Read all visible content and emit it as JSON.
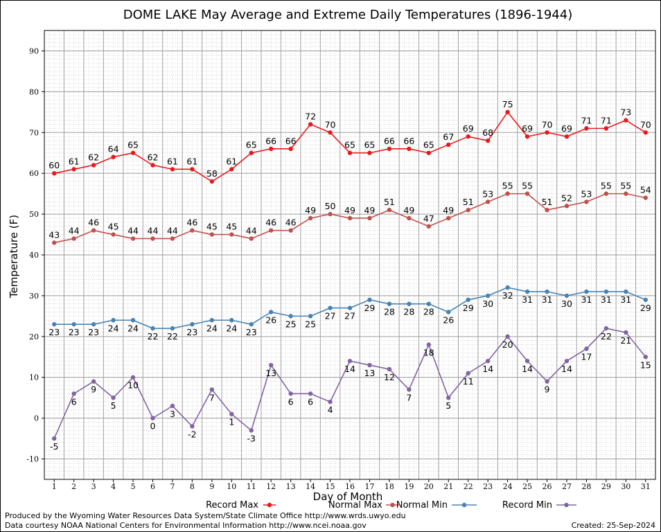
{
  "chart_data": {
    "type": "line",
    "title": "DOME LAKE May Average and Extreme Daily Temperatures (1896-1944)",
    "xlabel": "Day of Month",
    "ylabel": "Temperature (F)",
    "ylim": [
      -15,
      95
    ],
    "xlim": [
      0.5,
      31.5
    ],
    "yticks": [
      -10,
      0,
      10,
      20,
      30,
      40,
      50,
      60,
      70,
      80,
      90
    ],
    "x": [
      1,
      2,
      3,
      4,
      5,
      6,
      7,
      8,
      9,
      10,
      11,
      12,
      13,
      14,
      15,
      16,
      17,
      18,
      19,
      20,
      21,
      22,
      23,
      24,
      25,
      26,
      27,
      28,
      29,
      30,
      31
    ],
    "grid": true,
    "legend_position": "bottom",
    "series": [
      {
        "name": "Record Max",
        "color": "#e8191c",
        "labels": "above",
        "values": [
          60,
          61,
          62,
          64,
          65,
          62,
          61,
          61,
          58,
          61,
          65,
          66,
          66,
          72,
          70,
          65,
          65,
          66,
          66,
          65,
          67,
          69,
          68,
          75,
          69,
          70,
          69,
          71,
          71,
          73,
          70
        ]
      },
      {
        "name": "Normal Max",
        "color": "#c0504d",
        "labels": "above",
        "values": [
          43,
          44,
          46,
          45,
          44,
          44,
          44,
          46,
          45,
          45,
          44,
          46,
          46,
          49,
          50,
          49,
          49,
          51,
          49,
          47,
          49,
          51,
          53,
          55,
          55,
          51,
          52,
          53,
          55,
          55,
          54
        ]
      },
      {
        "name": "Normal Min",
        "color": "#4682b4",
        "labels": "below",
        "values": [
          23,
          23,
          23,
          24,
          24,
          22,
          22,
          23,
          24,
          24,
          23,
          26,
          25,
          25,
          27,
          27,
          29,
          28,
          28,
          28,
          26,
          29,
          30,
          32,
          31,
          31,
          30,
          31,
          31,
          31,
          29
        ]
      },
      {
        "name": "Record Min",
        "color": "#8064a2",
        "labels": "below",
        "values": [
          -5,
          6,
          9,
          5,
          10,
          0,
          3,
          -2,
          7,
          1,
          -3,
          13,
          6,
          6,
          4,
          14,
          13,
          12,
          7,
          18,
          5,
          11,
          14,
          20,
          14,
          9,
          14,
          17,
          22,
          21,
          15
        ]
      }
    ]
  },
  "footer": {
    "left_line1": "Produced by the Wyoming Water Resources Data System/State Climate Office http://www.wrds.uwyo.edu",
    "left_line2": "Data courtesy NOAA National Centers for Environmental Information http://www.ncei.noaa.gov",
    "created": "Created:  25-Sep-2024"
  }
}
